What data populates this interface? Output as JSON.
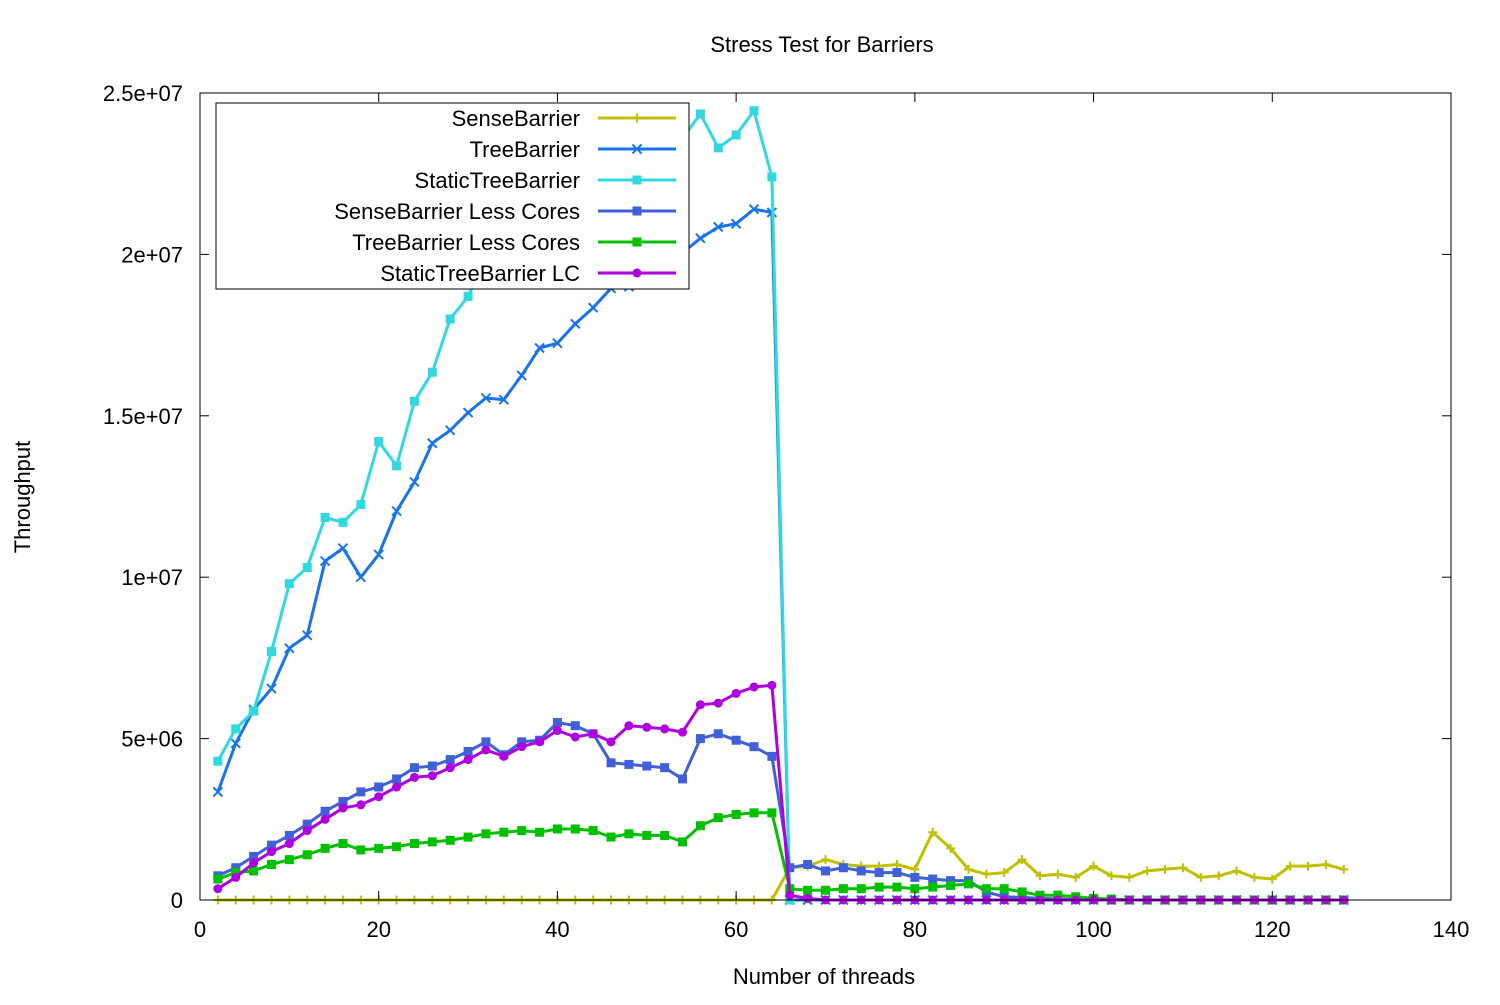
{
  "chart_data": {
    "type": "line",
    "title": "Stress Test for Barriers",
    "xlabel": "Number of threads",
    "ylabel": "Throughput",
    "xlim": [
      0,
      140
    ],
    "ylim": [
      0,
      25000000
    ],
    "xticks": [
      0,
      20,
      40,
      60,
      80,
      100,
      120,
      140
    ],
    "xtick_labels": [
      "0",
      "20",
      "40",
      "60",
      "80",
      "100",
      "120",
      "140"
    ],
    "yticks": [
      0,
      5000000,
      10000000,
      15000000,
      20000000,
      25000000
    ],
    "ytick_labels": [
      "0",
      "5e+06",
      "1e+07",
      "1.5e+07",
      "2e+07",
      "2.5e+07"
    ],
    "grid": false,
    "legend_position": "top-left",
    "series": [
      {
        "name": "SenseBarrier",
        "color": "#c0c000",
        "marker": "plus",
        "x": [
          2,
          4,
          6,
          8,
          10,
          12,
          14,
          16,
          18,
          20,
          22,
          24,
          26,
          28,
          30,
          32,
          34,
          36,
          38,
          40,
          42,
          44,
          46,
          48,
          50,
          52,
          54,
          56,
          58,
          60,
          62,
          64,
          66,
          68,
          70,
          72,
          74,
          76,
          78,
          80,
          82,
          84,
          86,
          88,
          90,
          92,
          94,
          96,
          98,
          100,
          102,
          104,
          106,
          108,
          110,
          112,
          114,
          116,
          118,
          120,
          122,
          124,
          126,
          128
        ],
        "y": [
          0,
          0,
          0,
          0,
          0,
          0,
          0,
          0,
          0,
          0,
          0,
          0,
          0,
          0,
          0,
          0,
          0,
          0,
          0,
          0,
          0,
          0,
          0,
          0,
          0,
          0,
          0,
          0,
          0,
          0,
          0,
          0,
          1000000,
          1050000,
          1250000,
          1100000,
          1050000,
          1050000,
          1100000,
          950000,
          2100000,
          1600000,
          950000,
          800000,
          850000,
          1250000,
          750000,
          800000,
          700000,
          1050000,
          750000,
          700000,
          900000,
          950000,
          1000000,
          700000,
          750000,
          900000,
          700000,
          650000,
          1050000,
          1050000,
          1100000,
          950000
        ]
      },
      {
        "name": "TreeBarrier",
        "color": "#1874e8",
        "marker": "cross",
        "x": [
          2,
          4,
          6,
          8,
          10,
          12,
          14,
          16,
          18,
          20,
          22,
          24,
          26,
          28,
          30,
          32,
          34,
          36,
          38,
          40,
          42,
          44,
          46,
          48,
          50,
          52,
          54,
          56,
          58,
          60,
          62,
          64,
          66,
          68,
          70,
          72,
          74,
          76,
          78,
          80,
          82,
          84,
          86,
          88,
          90,
          92,
          94,
          96,
          98,
          100,
          102,
          104,
          106,
          108,
          110,
          112,
          114,
          116,
          118,
          120,
          122,
          124,
          126,
          128
        ],
        "y": [
          3350000,
          4850000,
          5900000,
          6550000,
          7800000,
          8200000,
          10500000,
          10900000,
          10000000,
          10700000,
          12050000,
          12950000,
          14150000,
          14550000,
          15100000,
          15550000,
          15500000,
          16250000,
          17100000,
          17250000,
          17850000,
          18350000,
          18950000,
          19000000,
          19100000,
          19650000,
          20050000,
          20500000,
          20850000,
          20950000,
          21400000,
          21300000,
          0,
          0,
          0,
          0,
          0,
          0,
          0,
          0,
          0,
          0,
          0,
          0,
          0,
          0,
          0,
          0,
          0,
          0,
          0,
          0,
          0,
          0,
          0,
          0,
          0,
          0,
          0,
          0,
          0,
          0,
          0,
          0
        ]
      },
      {
        "name": "StaticTreeBarrier",
        "color": "#30d8e0",
        "marker": "square",
        "x": [
          2,
          4,
          6,
          8,
          10,
          12,
          14,
          16,
          18,
          20,
          22,
          24,
          26,
          28,
          30,
          32,
          34,
          36,
          38,
          40,
          42,
          44,
          46,
          48,
          50,
          52,
          54,
          56,
          58,
          60,
          62,
          64,
          66
        ],
        "y": [
          4300000,
          5300000,
          5850000,
          7700000,
          9800000,
          10300000,
          11850000,
          11700000,
          12250000,
          14200000,
          13450000,
          15450000,
          16350000,
          18000000,
          18700000,
          19850000,
          19800000,
          21000000,
          20600000,
          21550000,
          21500000,
          21850000,
          22200000,
          22550000,
          23200000,
          23100000,
          23600000,
          24350000,
          23300000,
          23700000,
          24450000,
          22400000,
          0
        ]
      },
      {
        "name": "SenseBarrier Less Cores",
        "color": "#4060d8",
        "marker": "square",
        "x": [
          2,
          4,
          6,
          8,
          10,
          12,
          14,
          16,
          18,
          20,
          22,
          24,
          26,
          28,
          30,
          32,
          34,
          36,
          38,
          40,
          42,
          44,
          46,
          48,
          50,
          52,
          54,
          56,
          58,
          60,
          62,
          64,
          66,
          68,
          70,
          72,
          74,
          76,
          78,
          80,
          82,
          84,
          86,
          88,
          90,
          92,
          94,
          96,
          98,
          100,
          102,
          104,
          106,
          108,
          110,
          112,
          114,
          116,
          118,
          120,
          122,
          124,
          126,
          128
        ],
        "y": [
          750000,
          1000000,
          1350000,
          1700000,
          2000000,
          2350000,
          2750000,
          3050000,
          3350000,
          3500000,
          3750000,
          4100000,
          4150000,
          4350000,
          4600000,
          4900000,
          4500000,
          4900000,
          4950000,
          5500000,
          5400000,
          5150000,
          4250000,
          4200000,
          4150000,
          4100000,
          3750000,
          5000000,
          5150000,
          4950000,
          4750000,
          4450000,
          1000000,
          1100000,
          900000,
          1000000,
          900000,
          850000,
          850000,
          700000,
          650000,
          600000,
          600000,
          250000,
          100000,
          80000,
          50000,
          30000,
          20000,
          20000,
          0,
          0,
          0,
          0,
          0,
          0,
          0,
          0,
          0,
          0,
          0,
          0,
          0,
          0
        ]
      },
      {
        "name": "TreeBarrier Less Cores",
        "color": "#00c000",
        "marker": "square",
        "x": [
          2,
          4,
          6,
          8,
          10,
          12,
          14,
          16,
          18,
          20,
          22,
          24,
          26,
          28,
          30,
          32,
          34,
          36,
          38,
          40,
          42,
          44,
          46,
          48,
          50,
          52,
          54,
          56,
          58,
          60,
          62,
          64,
          66,
          68,
          70,
          72,
          74,
          76,
          78,
          80,
          82,
          84,
          86,
          88,
          90,
          92,
          94,
          96,
          98,
          100,
          102,
          104,
          106,
          108,
          110,
          112,
          114,
          116,
          118,
          120,
          122,
          124,
          126,
          128
        ],
        "y": [
          650000,
          850000,
          900000,
          1100000,
          1250000,
          1400000,
          1600000,
          1750000,
          1550000,
          1600000,
          1650000,
          1750000,
          1800000,
          1850000,
          1950000,
          2050000,
          2100000,
          2150000,
          2100000,
          2200000,
          2200000,
          2150000,
          1950000,
          2050000,
          2000000,
          2000000,
          1800000,
          2300000,
          2550000,
          2650000,
          2700000,
          2700000,
          350000,
          300000,
          300000,
          350000,
          350000,
          400000,
          400000,
          350000,
          400000,
          450000,
          500000,
          350000,
          350000,
          250000,
          150000,
          150000,
          100000,
          50000,
          30000,
          0,
          0,
          0,
          0,
          0,
          0,
          0,
          0,
          0,
          0,
          0,
          0,
          0
        ]
      },
      {
        "name": "StaticTreeBarrier LC",
        "color": "#b000e0",
        "marker": "circle",
        "x": [
          2,
          4,
          6,
          8,
          10,
          12,
          14,
          16,
          18,
          20,
          22,
          24,
          26,
          28,
          30,
          32,
          34,
          36,
          38,
          40,
          42,
          44,
          46,
          48,
          50,
          52,
          54,
          56,
          58,
          60,
          62,
          64,
          66,
          68,
          70,
          72,
          74,
          76,
          78,
          80,
          82,
          84,
          86,
          88,
          90,
          92,
          94,
          96,
          98,
          100,
          102,
          104,
          106,
          108,
          110,
          112,
          114,
          116,
          118,
          120,
          122,
          124,
          126,
          128
        ],
        "y": [
          350000,
          700000,
          1150000,
          1500000,
          1750000,
          2150000,
          2500000,
          2850000,
          2950000,
          3200000,
          3500000,
          3800000,
          3850000,
          4100000,
          4350000,
          4650000,
          4450000,
          4750000,
          4900000,
          5250000,
          5050000,
          5150000,
          4900000,
          5400000,
          5350000,
          5300000,
          5200000,
          6050000,
          6100000,
          6400000,
          6600000,
          6650000,
          150000,
          50000,
          0,
          0,
          0,
          0,
          0,
          0,
          0,
          0,
          0,
          0,
          0,
          0,
          0,
          0,
          0,
          0,
          0,
          0,
          0,
          0,
          0,
          0,
          0,
          0,
          0,
          0,
          0,
          0,
          0,
          0
        ]
      }
    ]
  }
}
